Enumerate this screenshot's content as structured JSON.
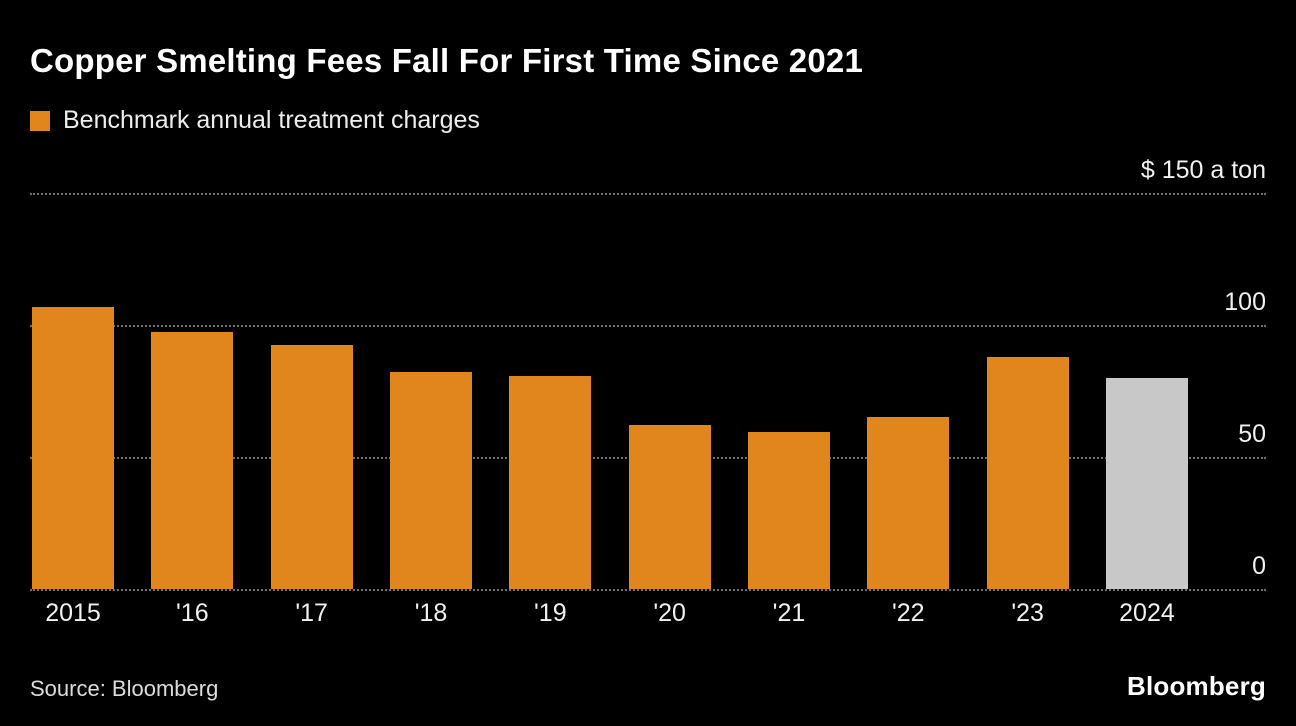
{
  "title": "Copper Smelting Fees Fall For First Time Since 2021",
  "legend": {
    "label": "Benchmark annual treatment charges",
    "swatch_color": "#E0861C"
  },
  "source": "Source: Bloomberg",
  "brand": "Bloomberg",
  "colors": {
    "bar": "#E0861C",
    "highlight_bar": "#C8C8C8",
    "background": "#000000",
    "gridline": "#6F6F6F"
  },
  "chart_data": {
    "type": "bar",
    "title": "Copper Smelting Fees Fall For First Time Since 2021",
    "subtitle_legend": "Benchmark annual treatment charges",
    "categories": [
      "2015",
      "'16",
      "'17",
      "'18",
      "'19",
      "'20",
      "'21",
      "'22",
      "'23",
      "2024"
    ],
    "values": [
      107,
      97.35,
      92.5,
      82.25,
      80.8,
      62,
      59.5,
      65,
      88,
      80
    ],
    "unit": "$ a ton",
    "ylim": [
      0,
      150
    ],
    "yticks": [
      {
        "value": 150,
        "label": "$ 150 a ton"
      },
      {
        "value": 100,
        "label": "100"
      },
      {
        "value": 50,
        "label": "50"
      },
      {
        "value": 0,
        "label": "0"
      }
    ],
    "grid": "dotted-horizontal",
    "legend_position": "top-left",
    "highlight_last": true,
    "highlight_note": "2024 bar shown in gray; all other bars orange"
  }
}
